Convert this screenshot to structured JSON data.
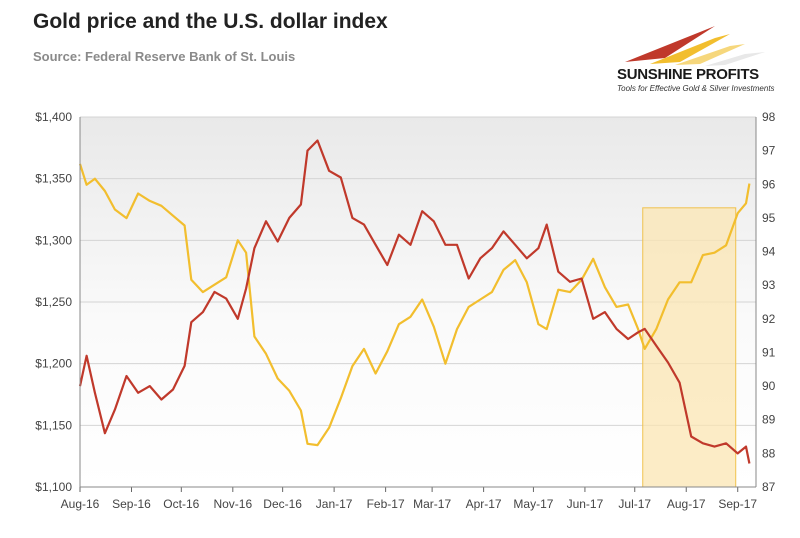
{
  "header": {
    "title": "Gold price and the U.S. dollar index",
    "source": "Source: Federal Reserve Bank of St. Louis"
  },
  "logo": {
    "brand": "SUNSHINE PROFITS",
    "tagline": "Tools for Effective Gold & Silver Investments"
  },
  "colors": {
    "gold": "#f2be2e",
    "dollar": "#c0392b",
    "highlight_fill": "#fbe6b3",
    "highlight_stroke": "#f0c24d"
  },
  "chart_data": {
    "type": "line",
    "title": "Gold price and the U.S. dollar index",
    "grid": true,
    "legend": "none",
    "x_ticks": [
      "Aug-16",
      "Sep-16",
      "Oct-16",
      "Nov-16",
      "Dec-16",
      "Jan-17",
      "Feb-17",
      "Mar-17",
      "Apr-17",
      "May-17",
      "Jun-17",
      "Jul-17",
      "Aug-17",
      "Sep-17"
    ],
    "y_left": {
      "ticks": [
        "$1,400",
        "$1,350",
        "$1,300",
        "$1,250",
        "$1,200",
        "$1,150",
        "$1,100"
      ],
      "range": [
        1100,
        1400
      ]
    },
    "y_right": {
      "ticks": [
        "98",
        "97",
        "96",
        "95",
        "94",
        "93",
        "92",
        "91",
        "90",
        "89",
        "88",
        "87"
      ],
      "range": [
        87,
        98
      ]
    },
    "highlight": {
      "from": "Jul-17",
      "to": "Sep-17"
    },
    "series": [
      {
        "axis": "left",
        "color": "#f2be2e",
        "x": [
          "2016-08-01",
          "2016-08-05",
          "2016-08-10",
          "2016-08-16",
          "2016-08-22",
          "2016-08-29",
          "2016-09-05",
          "2016-09-12",
          "2016-09-19",
          "2016-09-26",
          "2016-10-03",
          "2016-10-07",
          "2016-10-14",
          "2016-10-21",
          "2016-10-28",
          "2016-11-04",
          "2016-11-09",
          "2016-11-14",
          "2016-11-21",
          "2016-11-28",
          "2016-12-05",
          "2016-12-12",
          "2016-12-16",
          "2016-12-22",
          "2016-12-29",
          "2017-01-05",
          "2017-01-12",
          "2017-01-19",
          "2017-01-26",
          "2017-02-02",
          "2017-02-09",
          "2017-02-16",
          "2017-02-23",
          "2017-03-02",
          "2017-03-09",
          "2017-03-16",
          "2017-03-23",
          "2017-03-30",
          "2017-04-06",
          "2017-04-13",
          "2017-04-20",
          "2017-04-27",
          "2017-05-04",
          "2017-05-09",
          "2017-05-16",
          "2017-05-23",
          "2017-05-30",
          "2017-06-06",
          "2017-06-13",
          "2017-06-20",
          "2017-06-27",
          "2017-07-03",
          "2017-07-07",
          "2017-07-14",
          "2017-07-21",
          "2017-07-28",
          "2017-08-04",
          "2017-08-11",
          "2017-08-18",
          "2017-08-25",
          "2017-09-01",
          "2017-09-06",
          "2017-09-08"
        ],
        "y": [
          1362,
          1345,
          1350,
          1340,
          1325,
          1318,
          1338,
          1332,
          1328,
          1320,
          1312,
          1268,
          1258,
          1264,
          1270,
          1300,
          1290,
          1222,
          1208,
          1188,
          1178,
          1162,
          1135,
          1134,
          1148,
          1172,
          1198,
          1212,
          1192,
          1210,
          1232,
          1238,
          1252,
          1230,
          1200,
          1228,
          1246,
          1252,
          1258,
          1276,
          1284,
          1266,
          1232,
          1228,
          1260,
          1258,
          1268,
          1285,
          1262,
          1246,
          1248,
          1228,
          1212,
          1228,
          1252,
          1266,
          1266,
          1288,
          1290,
          1296,
          1322,
          1330,
          1346
        ]
      },
      {
        "axis": "right",
        "color": "#c0392b",
        "x": [
          "2016-08-01",
          "2016-08-05",
          "2016-08-10",
          "2016-08-16",
          "2016-08-22",
          "2016-08-29",
          "2016-09-05",
          "2016-09-12",
          "2016-09-19",
          "2016-09-26",
          "2016-10-03",
          "2016-10-07",
          "2016-10-14",
          "2016-10-21",
          "2016-10-28",
          "2016-11-04",
          "2016-11-09",
          "2016-11-14",
          "2016-11-21",
          "2016-11-28",
          "2016-12-05",
          "2016-12-12",
          "2016-12-16",
          "2016-12-22",
          "2016-12-29",
          "2017-01-05",
          "2017-01-12",
          "2017-01-19",
          "2017-01-26",
          "2017-02-02",
          "2017-02-09",
          "2017-02-16",
          "2017-02-23",
          "2017-03-02",
          "2017-03-09",
          "2017-03-16",
          "2017-03-23",
          "2017-03-30",
          "2017-04-06",
          "2017-04-13",
          "2017-04-20",
          "2017-04-27",
          "2017-05-04",
          "2017-05-09",
          "2017-05-16",
          "2017-05-23",
          "2017-05-30",
          "2017-06-06",
          "2017-06-13",
          "2017-06-20",
          "2017-06-27",
          "2017-07-03",
          "2017-07-07",
          "2017-07-14",
          "2017-07-21",
          "2017-07-28",
          "2017-08-04",
          "2017-08-11",
          "2017-08-18",
          "2017-08-25",
          "2017-09-01",
          "2017-09-06",
          "2017-09-08"
        ],
        "y": [
          90.0,
          90.9,
          89.8,
          88.6,
          89.3,
          90.3,
          89.8,
          90.0,
          89.6,
          89.9,
          90.6,
          91.9,
          92.2,
          92.8,
          92.6,
          92.0,
          92.9,
          94.1,
          94.9,
          94.3,
          95.0,
          95.4,
          97.0,
          97.3,
          96.4,
          96.2,
          95.0,
          94.8,
          94.2,
          93.6,
          94.5,
          94.2,
          95.2,
          94.9,
          94.2,
          94.2,
          93.2,
          93.8,
          94.1,
          94.6,
          94.2,
          93.8,
          94.1,
          94.8,
          93.4,
          93.1,
          93.2,
          92.0,
          92.2,
          91.7,
          91.4,
          91.6,
          91.7,
          91.2,
          90.7,
          90.1,
          88.5,
          88.3,
          88.2,
          88.3,
          88.0,
          88.2,
          87.7
        ]
      }
    ]
  }
}
